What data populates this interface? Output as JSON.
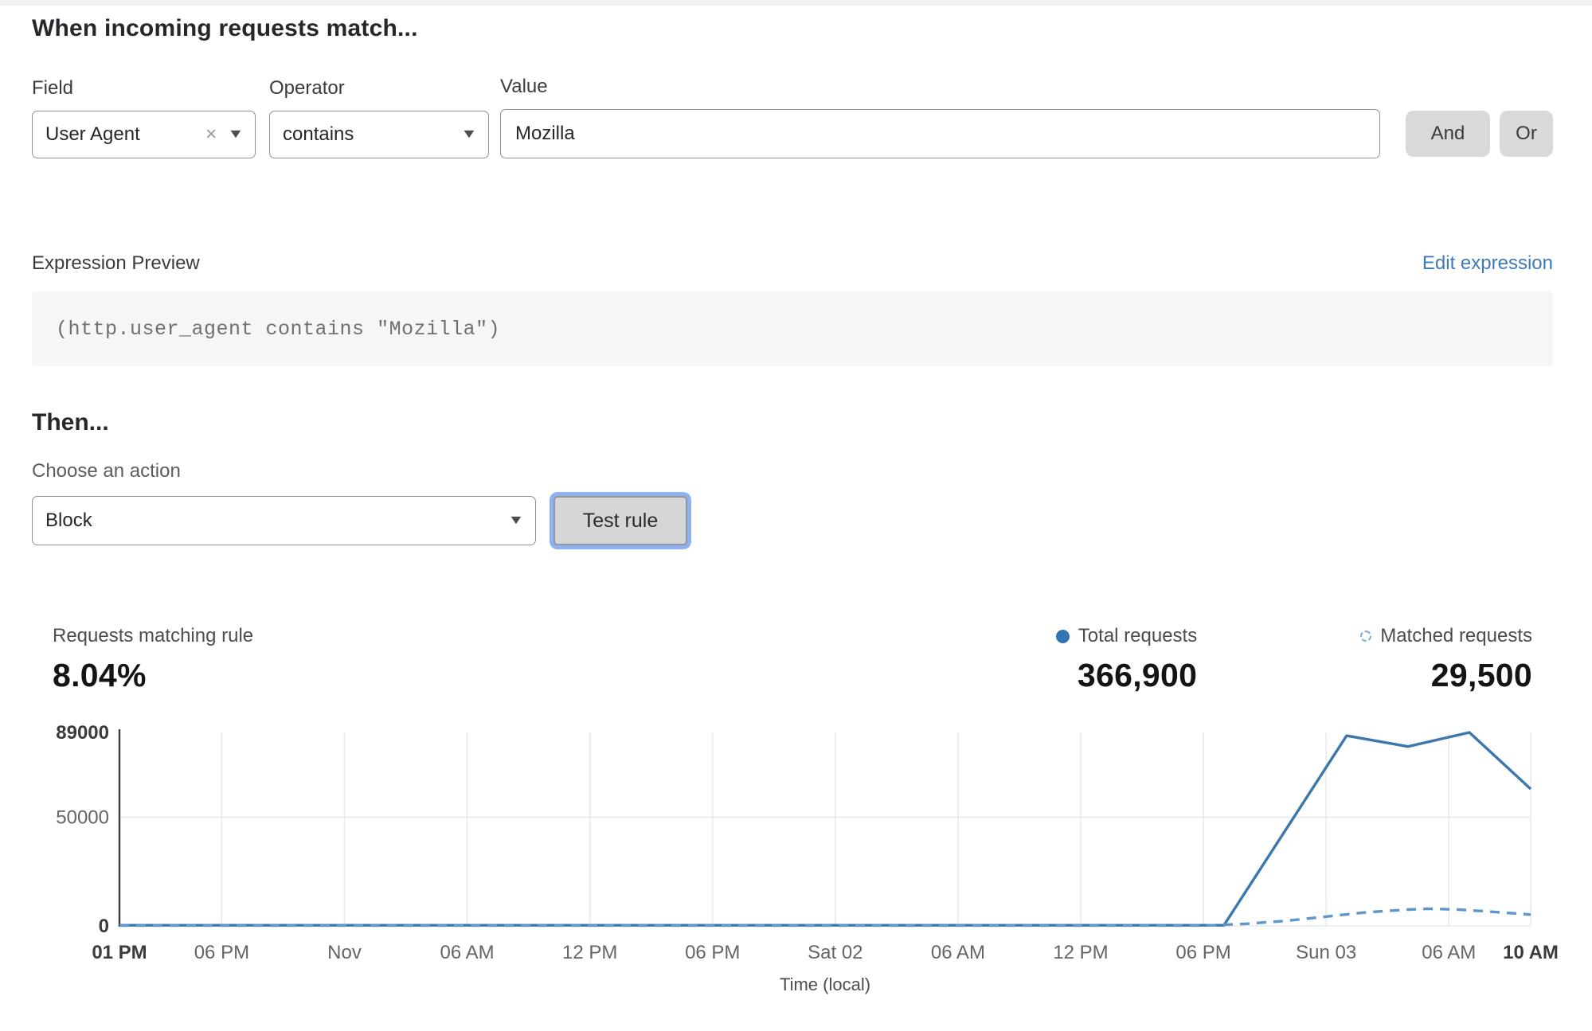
{
  "page": {
    "match_heading": "When incoming requests match..."
  },
  "icons": {
    "clear": "×",
    "chevron": "▼"
  },
  "rule_builder": {
    "field": {
      "label": "Field",
      "value": "User Agent"
    },
    "operator": {
      "label": "Operator",
      "value": "contains"
    },
    "value": {
      "label": "Value",
      "value": "Mozilla"
    },
    "and_label": "And",
    "or_label": "Or"
  },
  "expression": {
    "label": "Expression Preview",
    "edit_link": "Edit expression",
    "code": "(http.user_agent contains \"Mozilla\")"
  },
  "then_section": {
    "heading": "Then...",
    "action_label": "Choose an action",
    "action_value": "Block",
    "test_button": "Test rule"
  },
  "stats": {
    "matching": {
      "label": "Requests matching rule",
      "value": "8.04%"
    },
    "total": {
      "label": "Total requests",
      "value": "366,900",
      "legend": "solid-dot"
    },
    "matched": {
      "label": "Matched requests",
      "value": "29,500",
      "legend": "dashed-circle"
    }
  },
  "colors": {
    "link_blue": "#3f7ab8",
    "chart_solid": "#3b76ad",
    "chart_dashed": "#5f97cc",
    "axis": "#3d3d42",
    "grid": "#e9e9ea",
    "tick_bold": "#3a3a3f",
    "tick_regular": "#646469",
    "button_gray": "#d9d9da",
    "focus_ring": "#8cb3f0",
    "expression_bg": "#f6f6f7"
  },
  "chart_data": {
    "type": "line",
    "xlabel": "Time (local)",
    "ylabel": "",
    "xlim": [
      0,
      69
    ],
    "ylim": [
      0,
      89000
    ],
    "grid_vertical": true,
    "grid_horizontal_values": [
      0,
      50000
    ],
    "x_ticks": [
      {
        "hour": 0,
        "label": "01 PM",
        "bold": true
      },
      {
        "hour": 5,
        "label": "06 PM",
        "bold": false
      },
      {
        "hour": 11,
        "label": "Nov",
        "bold": false
      },
      {
        "hour": 17,
        "label": "06 AM",
        "bold": false
      },
      {
        "hour": 23,
        "label": "12 PM",
        "bold": false
      },
      {
        "hour": 29,
        "label": "06 PM",
        "bold": false
      },
      {
        "hour": 35,
        "label": "Sat 02",
        "bold": false
      },
      {
        "hour": 41,
        "label": "06 AM",
        "bold": false
      },
      {
        "hour": 47,
        "label": "12 PM",
        "bold": false
      },
      {
        "hour": 53,
        "label": "06 PM",
        "bold": false
      },
      {
        "hour": 59,
        "label": "Sun 03",
        "bold": false
      },
      {
        "hour": 65,
        "label": "06 AM",
        "bold": false
      },
      {
        "hour": 69,
        "label": "10 AM",
        "bold": true
      }
    ],
    "y_ticks": [
      {
        "value": 89000,
        "label": "89000",
        "bold": true
      },
      {
        "value": 50000,
        "label": "50000",
        "bold": false
      },
      {
        "value": 0,
        "label": "0",
        "bold": true
      }
    ],
    "series": [
      {
        "name": "Total requests",
        "style": "solid",
        "color": "#3b76ad",
        "points": [
          [
            0,
            300
          ],
          [
            54,
            300
          ],
          [
            60,
            87500
          ],
          [
            63,
            82500
          ],
          [
            66,
            89000
          ],
          [
            69,
            63000
          ]
        ]
      },
      {
        "name": "Matched requests",
        "style": "dashed",
        "color": "#5f97cc",
        "points": [
          [
            0,
            150
          ],
          [
            53,
            150
          ],
          [
            55,
            900
          ],
          [
            57,
            2300
          ],
          [
            59,
            4300
          ],
          [
            61,
            6300
          ],
          [
            63,
            7500
          ],
          [
            64,
            7900
          ],
          [
            65.5,
            7500
          ],
          [
            67,
            6600
          ],
          [
            69,
            5200
          ]
        ]
      }
    ]
  }
}
